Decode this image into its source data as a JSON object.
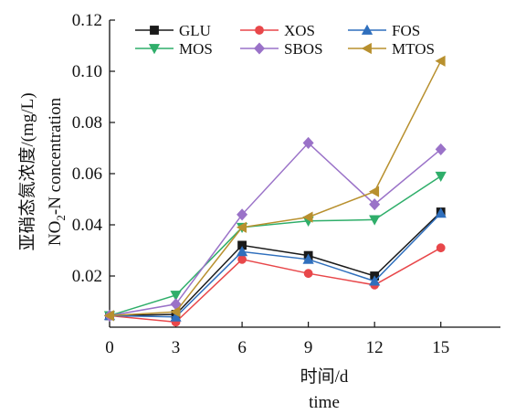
{
  "chart_data": {
    "type": "line",
    "x": [
      0,
      3,
      6,
      9,
      12,
      15
    ],
    "xlim": [
      0,
      17.7
    ],
    "ylim": [
      0,
      0.12
    ],
    "x_tick_labels": [
      "0",
      "3",
      "6",
      "9",
      "12",
      "15"
    ],
    "y_tick_labels": [
      "0.02",
      "0.04",
      "0.06",
      "0.08",
      "0.10",
      "0.12"
    ],
    "y_ticks": [
      0.02,
      0.04,
      0.06,
      0.08,
      0.1,
      0.12
    ],
    "xlabel": "时间/d",
    "xlabel_en": "time",
    "ylabel": "亚硝态氮浓度/(mg/L)",
    "ylabel_en_main": "NO",
    "ylabel_en_sub": "2",
    "ylabel_en_rest": "-N concentration",
    "legend_position": "top",
    "grid": false,
    "series": [
      {
        "name": "GLU",
        "marker": "square",
        "color": "#1a1a1a",
        "values": [
          0.0045,
          0.005,
          0.032,
          0.028,
          0.02,
          0.045
        ]
      },
      {
        "name": "XOS",
        "marker": "circle",
        "color": "#e8474a",
        "values": [
          0.0045,
          0.002,
          0.0265,
          0.021,
          0.0165,
          0.031
        ]
      },
      {
        "name": "FOS",
        "marker": "triangle-up",
        "color": "#2f6fbd",
        "values": [
          0.0045,
          0.004,
          0.0295,
          0.0265,
          0.018,
          0.0445
        ]
      },
      {
        "name": "MOS",
        "marker": "triangle-down",
        "color": "#2fae6a",
        "values": [
          0.0045,
          0.0125,
          0.039,
          0.0415,
          0.042,
          0.059
        ]
      },
      {
        "name": "SBOS",
        "marker": "diamond",
        "color": "#9a72c8",
        "values": [
          0.0045,
          0.009,
          0.044,
          0.072,
          0.048,
          0.0695
        ]
      },
      {
        "name": "MTOS",
        "marker": "triangle-left",
        "color": "#b8902e",
        "values": [
          0.0045,
          0.006,
          0.039,
          0.043,
          0.053,
          0.104
        ]
      }
    ]
  }
}
